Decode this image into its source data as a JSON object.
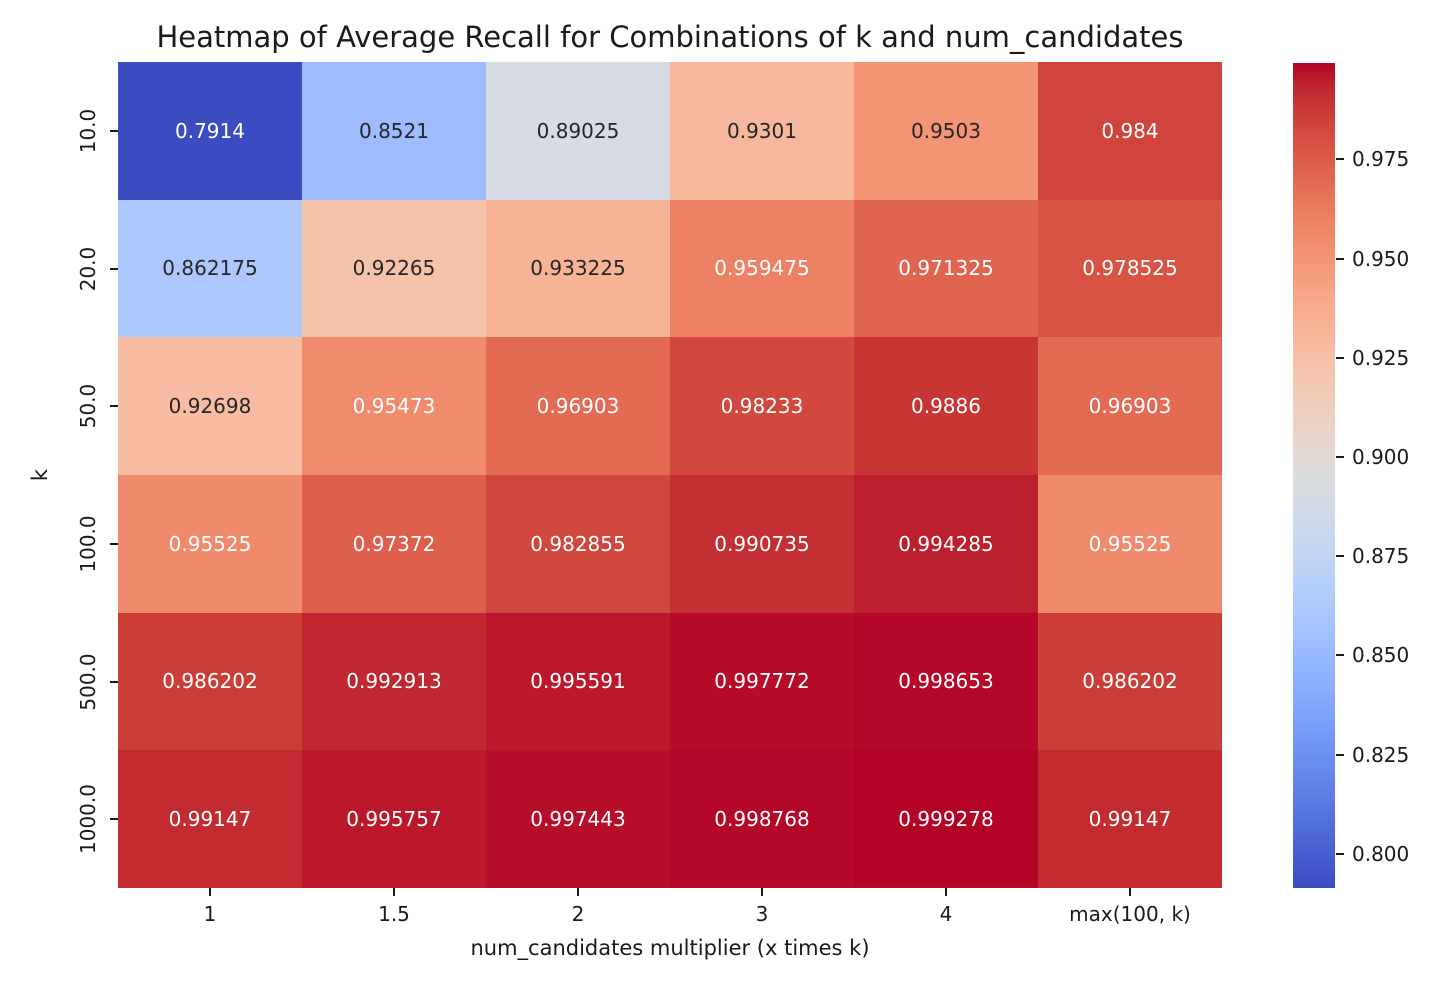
{
  "chart_data": {
    "type": "heatmap",
    "title": "Heatmap of Average Recall for Combinations of k and num_candidates",
    "xlabel": "num_candidates multiplier (x times k)",
    "ylabel": "k",
    "x_categories": [
      "1",
      "1.5",
      "2",
      "3",
      "4",
      "max(100, k)"
    ],
    "y_categories": [
      "10.0",
      "20.0",
      "50.0",
      "100.0",
      "500.0",
      "1000.0"
    ],
    "values": [
      [
        0.7914,
        0.8521,
        0.89025,
        0.9301,
        0.9503,
        0.984
      ],
      [
        0.862175,
        0.92265,
        0.933225,
        0.959475,
        0.971325,
        0.978525
      ],
      [
        0.92698,
        0.95473,
        0.96903,
        0.98233,
        0.9886,
        0.96903
      ],
      [
        0.95525,
        0.97372,
        0.982855,
        0.990735,
        0.994285,
        0.95525
      ],
      [
        0.986202,
        0.992913,
        0.995591,
        0.997772,
        0.998653,
        0.986202
      ],
      [
        0.99147,
        0.995757,
        0.997443,
        0.998768,
        0.999278,
        0.99147
      ]
    ],
    "vmin": 0.7914,
    "vmax": 0.999278,
    "colormap": "coolwarm",
    "colorbar_ticks": [
      "0.975",
      "0.950",
      "0.925",
      "0.900",
      "0.875",
      "0.850",
      "0.825",
      "0.800"
    ],
    "colorbar_position": "right",
    "grid": false,
    "annotation_dark_color": "#262626",
    "annotation_light_color": "#ffffff",
    "background_color": "#ffffff"
  }
}
